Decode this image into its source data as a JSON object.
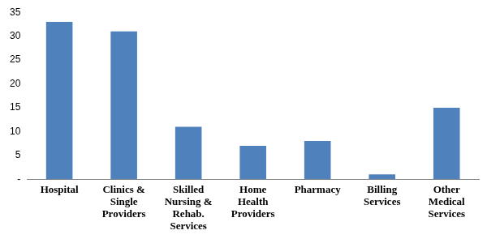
{
  "chart_data": {
    "type": "bar",
    "categories": [
      "Hospital",
      "Clinics & Single Providers",
      "Skilled Nursing & Rehab. Services",
      "Home Health Providers",
      "Pharmacy",
      "Billing Services",
      "Other Medical Services"
    ],
    "values": [
      33,
      31,
      11,
      7,
      8,
      1,
      15
    ],
    "color": "#4f81bd",
    "ylim": [
      0,
      35
    ],
    "yticks": [
      {
        "value": 0,
        "label": "-"
      },
      5,
      10,
      15,
      20,
      25,
      30,
      35
    ],
    "grid": false
  }
}
